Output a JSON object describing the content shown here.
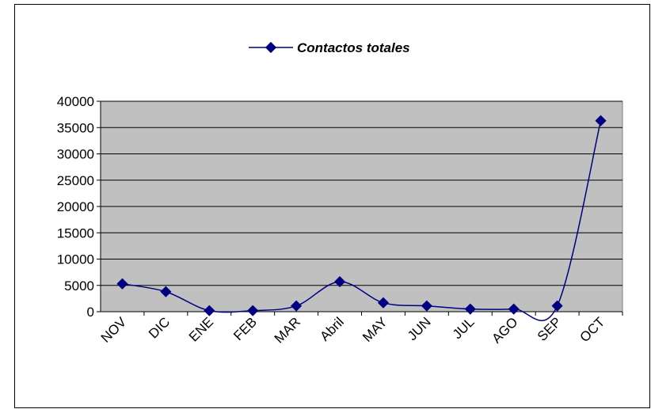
{
  "chart_data": {
    "type": "line",
    "categories": [
      "NOV",
      "DIC",
      "ENE",
      "FEB",
      "MAR",
      "Abril",
      "MAY",
      "JUN",
      "JUL",
      "AGO",
      "SEP",
      "OCT"
    ],
    "series": [
      {
        "name": "Contactos totales",
        "color": "#000080",
        "values": [
          5300,
          3800,
          200,
          200,
          1100,
          5700,
          1700,
          1100,
          500,
          500,
          1100,
          36300
        ]
      }
    ],
    "ylim": [
      0,
      40000
    ],
    "yticks": [
      0,
      5000,
      10000,
      15000,
      20000,
      25000,
      30000,
      35000,
      40000
    ],
    "grid": true,
    "smooth": true,
    "legend": "top"
  }
}
